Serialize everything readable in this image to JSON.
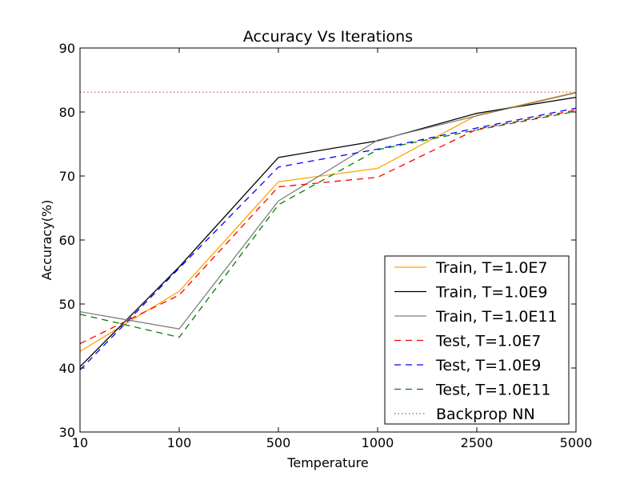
{
  "chart_data": {
    "type": "line",
    "title": "Accuracy Vs Iterations",
    "xlabel": "Temperature",
    "ylabel": "Accuracy(%)",
    "categories": [
      "10",
      "100",
      "500",
      "1000",
      "2500",
      "5000"
    ],
    "ylim": [
      30,
      90
    ],
    "yticks": [
      30,
      40,
      50,
      60,
      70,
      80,
      90
    ],
    "grid": false,
    "legend_position": "lower-right",
    "series": [
      {
        "name": "Train, T=1.0E7",
        "color": "#ffa500",
        "style": "solid",
        "values": [
          42.6,
          52.0,
          69.1,
          71.2,
          79.5,
          83.1
        ]
      },
      {
        "name": "Train, T=1.0E9",
        "color": "#000000",
        "style": "solid",
        "values": [
          40.2,
          55.8,
          72.9,
          75.5,
          79.8,
          82.3
        ]
      },
      {
        "name": "Train, T=1.0E11",
        "color": "#808080",
        "style": "solid",
        "values": [
          48.8,
          46.1,
          66.1,
          75.6,
          79.4,
          83.0
        ]
      },
      {
        "name": "Test, T=1.0E7",
        "color": "#ff0000",
        "style": "dashed",
        "values": [
          43.8,
          51.4,
          68.3,
          69.8,
          77.3,
          80.3
        ]
      },
      {
        "name": "Test, T=1.0E9",
        "color": "#0000ff",
        "style": "dashed",
        "values": [
          39.7,
          55.6,
          71.4,
          74.2,
          77.5,
          80.6
        ]
      },
      {
        "name": "Test, T=1.0E11",
        "color": "#008000",
        "style": "dashed",
        "values": [
          48.4,
          44.8,
          65.5,
          74.1,
          77.2,
          80.1
        ]
      }
    ],
    "reference_line": {
      "name": "Backprop NN",
      "color": "#c44e52",
      "style": "dotted",
      "value": 83.1
    }
  }
}
